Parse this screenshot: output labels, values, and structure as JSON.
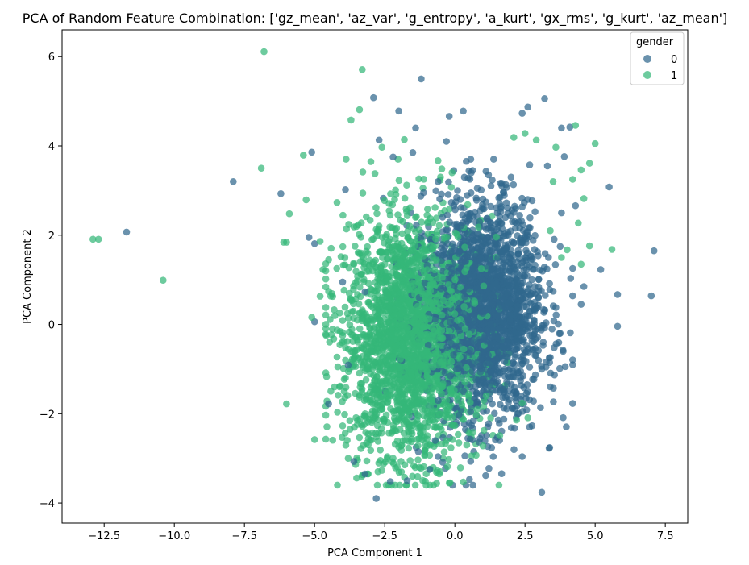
{
  "chart_data": {
    "type": "scatter",
    "title": "PCA of Random Feature Combination: ['gz_mean', 'az_var', 'g_entropy', 'a_kurt', 'gx_rms', 'g_kurt', 'az_mean']",
    "xlabel": "PCA Component 1",
    "ylabel": "PCA Component 2",
    "xlim": [
      -14.0,
      8.3
    ],
    "ylim": [
      -4.45,
      6.6
    ],
    "xticks": [
      -12.5,
      -10.0,
      -7.5,
      -5.0,
      -2.5,
      0.0,
      2.5,
      5.0,
      7.5
    ],
    "xtick_labels": [
      "−12.5",
      "−10.0",
      "−7.5",
      "−5.0",
      "−2.5",
      "0.0",
      "2.5",
      "5.0",
      "7.5"
    ],
    "yticks": [
      -4,
      -2,
      0,
      2,
      4,
      6
    ],
    "ytick_labels": [
      "−4",
      "−2",
      "0",
      "2",
      "4",
      "6"
    ],
    "grid": false,
    "legend": {
      "title": "gender",
      "placement": "top-right",
      "entries": [
        "0",
        "1"
      ]
    },
    "series": [
      {
        "name": "0",
        "color": "#31688e",
        "cluster": {
          "center_x": 1.0,
          "center_y": 0.3,
          "spread_x": 1.05,
          "spread_y": 1.2,
          "count": 2200
        },
        "points": [
          [
            -11.7,
            2.07
          ],
          [
            -7.9,
            3.2
          ],
          [
            -6.2,
            2.93
          ],
          [
            -5.1,
            3.86
          ],
          [
            -5.2,
            1.95
          ],
          [
            -5.0,
            1.81
          ],
          [
            -5.0,
            0.06
          ],
          [
            -3.9,
            3.02
          ],
          [
            -2.9,
            5.08
          ],
          [
            -1.2,
            5.5
          ],
          [
            -2.0,
            4.78
          ],
          [
            -1.4,
            4.4
          ],
          [
            -2.7,
            4.13
          ],
          [
            -2.2,
            3.75
          ],
          [
            -1.5,
            3.85
          ],
          [
            -0.2,
            4.66
          ],
          [
            0.3,
            4.78
          ],
          [
            -0.3,
            4.1
          ],
          [
            2.6,
            4.87
          ],
          [
            3.2,
            5.06
          ],
          [
            2.4,
            4.73
          ],
          [
            3.8,
            4.4
          ],
          [
            4.1,
            4.42
          ],
          [
            3.9,
            3.76
          ],
          [
            3.3,
            3.55
          ],
          [
            5.5,
            3.08
          ],
          [
            4.3,
            2.66
          ],
          [
            3.8,
            2.5
          ],
          [
            7.1,
            1.65
          ],
          [
            5.2,
            1.23
          ],
          [
            5.8,
            0.67
          ],
          [
            7.0,
            0.64
          ],
          [
            5.8,
            -0.04
          ],
          [
            4.6,
            0.85
          ],
          [
            4.5,
            0.45
          ],
          [
            4.2,
            0.64
          ],
          [
            3.6,
            0.38
          ],
          [
            3.2,
            -0.08
          ],
          [
            3.4,
            -0.74
          ],
          [
            3.1,
            -1.0
          ],
          [
            2.4,
            -2.96
          ],
          [
            3.1,
            -3.76
          ],
          [
            -1.7,
            -3.5
          ],
          [
            -2.3,
            -3.52
          ],
          [
            -3.6,
            -3.07
          ],
          [
            -3.2,
            -3.35
          ],
          [
            -2.8,
            -3.9
          ],
          [
            -1.3,
            -2.85
          ],
          [
            -0.9,
            -3.25
          ],
          [
            -0.6,
            -2.96
          ],
          [
            -4.5,
            -1.78
          ],
          [
            -3.8,
            -0.91
          ],
          [
            -4.0,
            0.95
          ],
          [
            -3.2,
            0.73
          ],
          [
            1.6,
            2.7
          ],
          [
            0.8,
            3.05
          ],
          [
            0.2,
            2.8
          ],
          [
            2.0,
            3.3
          ],
          [
            -0.6,
            3.2
          ],
          [
            1.2,
            3.35
          ],
          [
            2.6,
            2.8
          ]
        ]
      },
      {
        "name": "1",
        "color": "#35b779",
        "cluster": {
          "center_x": -1.5,
          "center_y": -0.3,
          "spread_x": 1.2,
          "spread_y": 1.3,
          "count": 2400
        },
        "points": [
          [
            -12.9,
            1.91
          ],
          [
            -12.7,
            1.91
          ],
          [
            -10.4,
            0.99
          ],
          [
            -6.8,
            6.11
          ],
          [
            -6.9,
            3.5
          ],
          [
            -5.9,
            2.48
          ],
          [
            -6.1,
            1.84
          ],
          [
            -6.0,
            1.84
          ],
          [
            -5.3,
            2.79
          ],
          [
            -5.4,
            3.79
          ],
          [
            -4.2,
            2.73
          ],
          [
            -6.0,
            -1.78
          ],
          [
            -5.0,
            -2.58
          ],
          [
            -4.8,
            1.86
          ],
          [
            -4.5,
            1.45
          ],
          [
            -4.7,
            1.23
          ],
          [
            -4.5,
            0.74
          ],
          [
            -4.8,
            0.63
          ],
          [
            -5.1,
            0.16
          ],
          [
            -4.3,
            0.33
          ],
          [
            -4.0,
            0.09
          ],
          [
            -4.4,
            -0.23
          ],
          [
            -4.2,
            -0.73
          ],
          [
            -3.9,
            -1.2
          ],
          [
            -4.0,
            -2.27
          ],
          [
            -3.8,
            -3.0
          ],
          [
            -3.5,
            -3.44
          ],
          [
            -3.3,
            5.71
          ],
          [
            -3.7,
            4.58
          ],
          [
            -3.4,
            4.81
          ],
          [
            -2.6,
            3.97
          ],
          [
            -1.8,
            4.14
          ],
          [
            -0.6,
            3.67
          ],
          [
            -0.1,
            3.4
          ],
          [
            2.5,
            4.28
          ],
          [
            2.1,
            4.19
          ],
          [
            2.9,
            4.13
          ],
          [
            3.6,
            3.97
          ],
          [
            4.3,
            4.46
          ],
          [
            5.0,
            4.05
          ],
          [
            4.8,
            3.61
          ],
          [
            4.5,
            3.46
          ],
          [
            3.5,
            3.2
          ],
          [
            4.2,
            3.25
          ],
          [
            4.6,
            2.82
          ],
          [
            4.4,
            2.27
          ],
          [
            4.8,
            1.76
          ],
          [
            4.0,
            1.67
          ],
          [
            5.6,
            1.68
          ],
          [
            4.5,
            1.35
          ],
          [
            3.4,
            2.1
          ],
          [
            3.8,
            1.5
          ],
          [
            -0.9,
            -2.93
          ],
          [
            -0.2,
            -3.55
          ],
          [
            0.2,
            -3.21
          ],
          [
            0.3,
            -3.53
          ],
          [
            1.0,
            -2.72
          ],
          [
            1.6,
            -2.49
          ],
          [
            2.2,
            -2.14
          ],
          [
            2.4,
            -1.76
          ],
          [
            2.6,
            -2.09
          ],
          [
            -2.2,
            -3.0
          ],
          [
            -2.6,
            -3.27
          ],
          [
            -3.0,
            -2.82
          ],
          [
            -2.0,
            -1.5
          ],
          [
            -3.2,
            -2.0
          ],
          [
            -1.1,
            -2.05
          ],
          [
            0.8,
            -1.9
          ]
        ]
      }
    ]
  }
}
